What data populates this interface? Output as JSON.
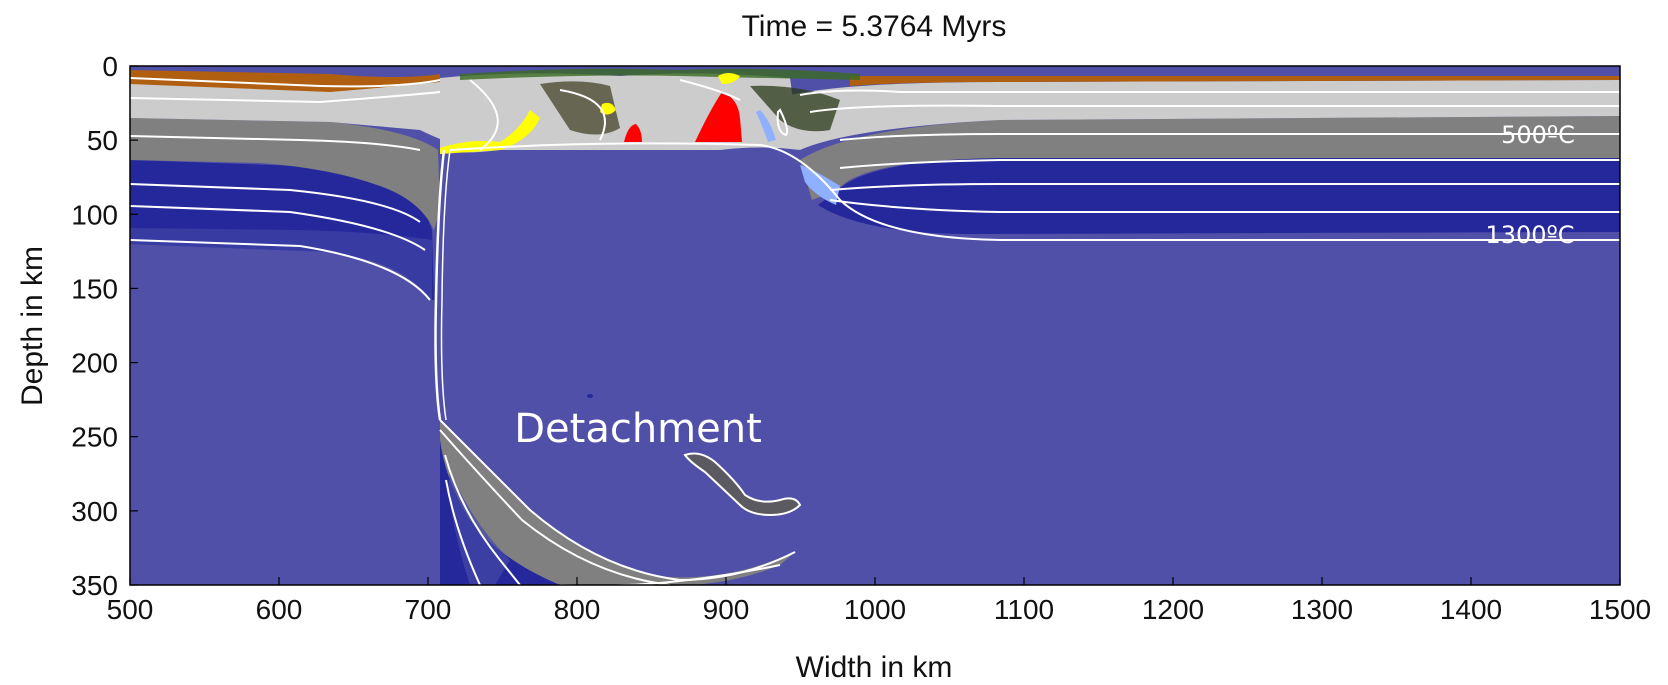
{
  "title": "Time = 5.3764 Myrs",
  "xlabel": "Width in km",
  "ylabel": "Depth in km",
  "x_ticks": [
    "500",
    "600",
    "700",
    "800",
    "900",
    "1000",
    "1100",
    "1200",
    "1300",
    "1400",
    "1500"
  ],
  "y_ticks": [
    "0",
    "50",
    "100",
    "150",
    "200",
    "250",
    "300",
    "350"
  ],
  "xlim": [
    500,
    1500
  ],
  "ylim": [
    0,
    350
  ],
  "annotations": {
    "isotherm_500": "500ºC",
    "isotherm_1300": "1300ºC",
    "detachment": "Detachment"
  },
  "colors": {
    "mantle": "#5050a8",
    "lithosphere_dark_blue": "#25289a",
    "upper_crust_light_gray": "#cccccc",
    "lower_crust_gray": "#808080",
    "sediment_brown": "#b05f10",
    "melt_red": "#ff0000",
    "melt_yellow": "#ffff00",
    "light_blue": "#8fb0ff",
    "isotherm_white": "#ffffff"
  }
}
